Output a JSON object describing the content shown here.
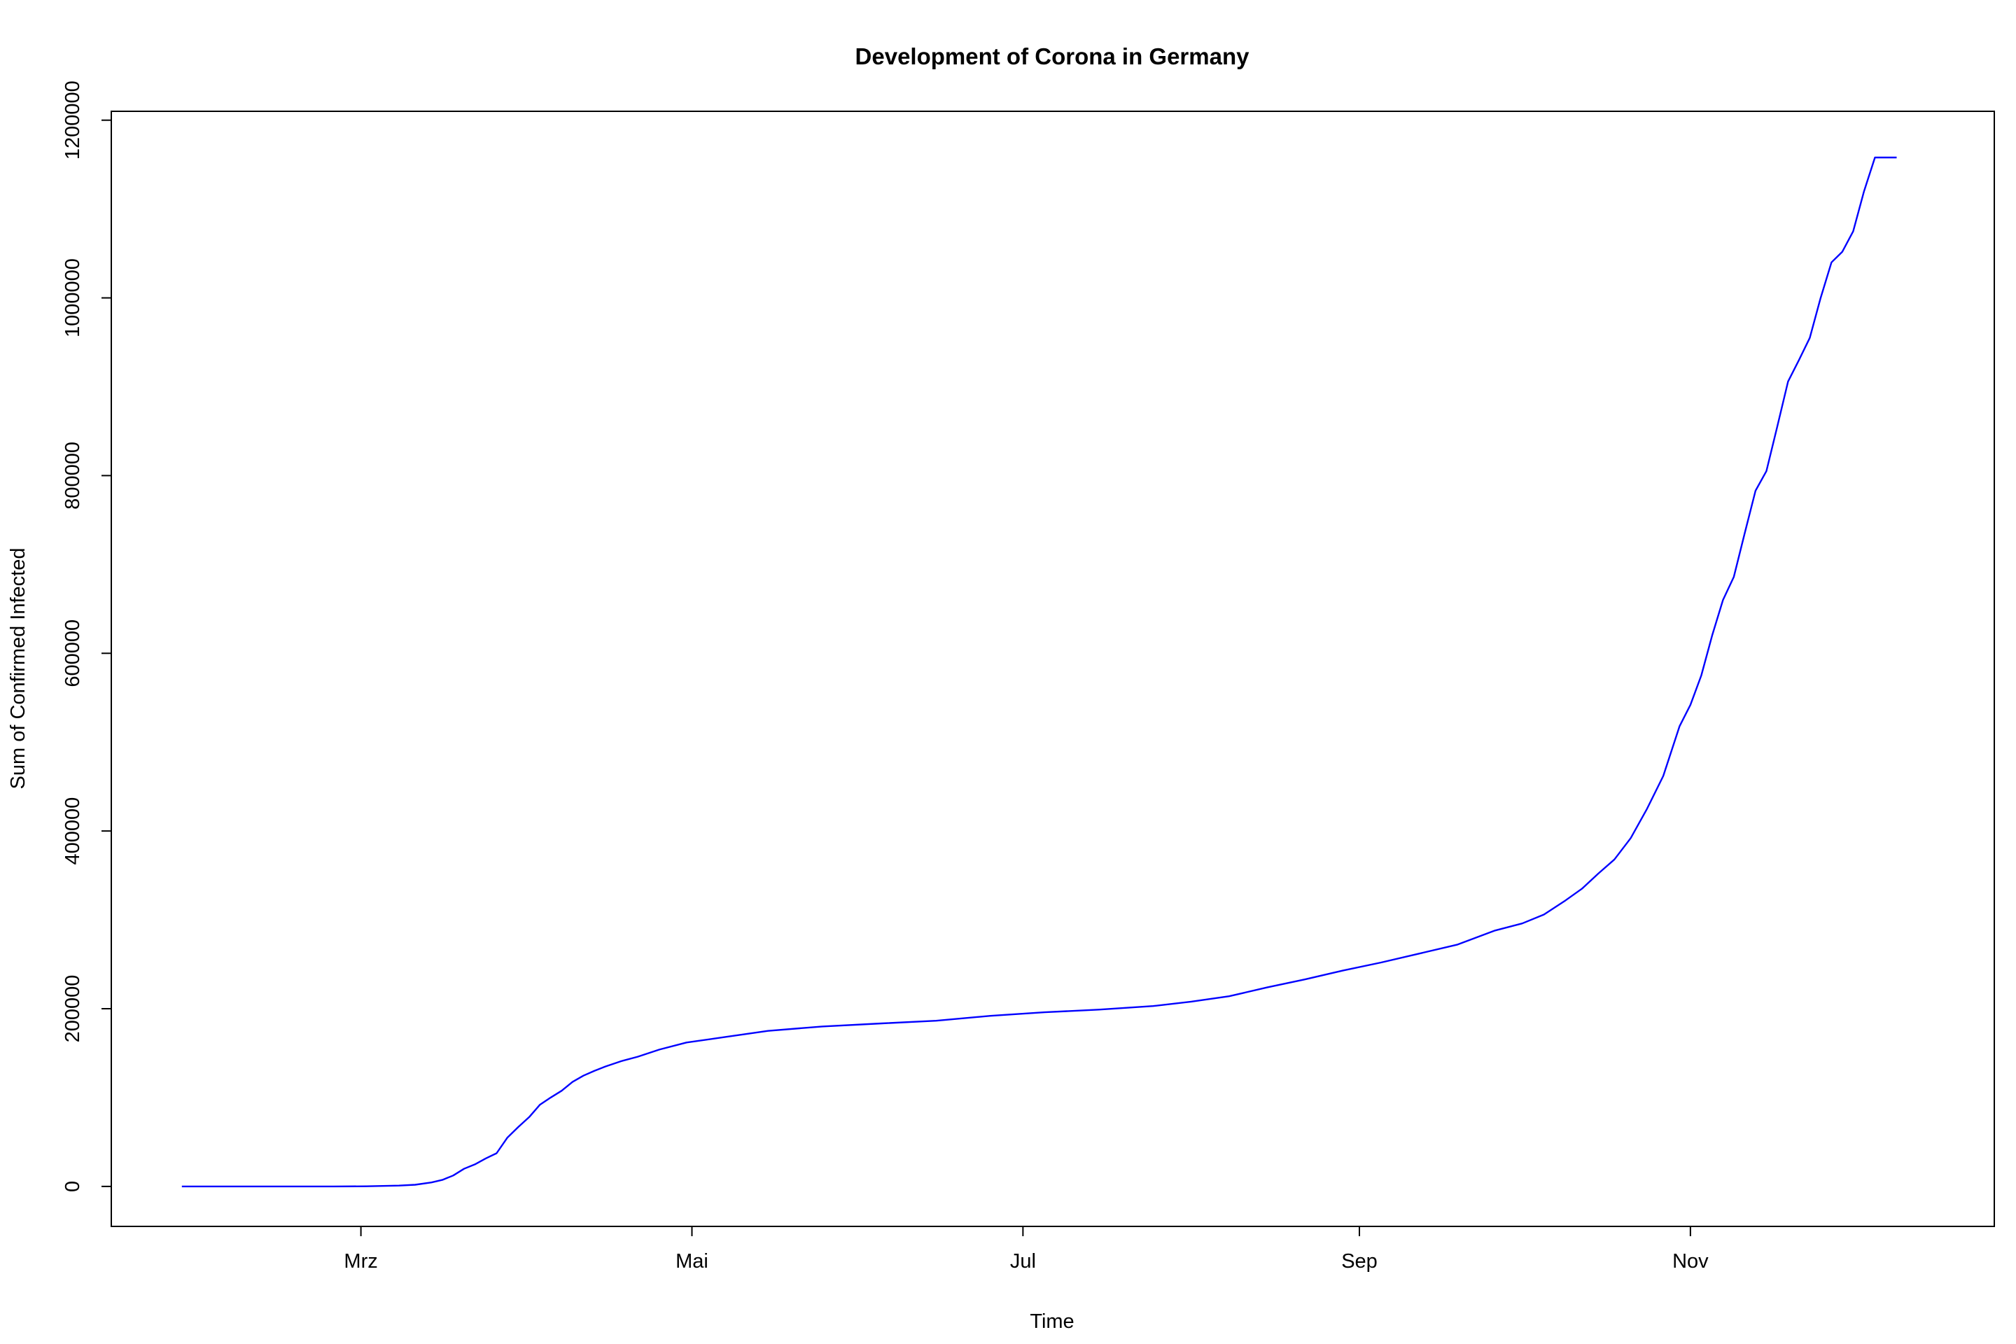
{
  "chart_data": {
    "type": "line",
    "title": "Development of Corona in Germany",
    "xlabel": "Time",
    "ylabel": "Sum of Confirmed Infected",
    "x_tick_labels": [
      {
        "date": "2020-03-01",
        "label": "Mrz"
      },
      {
        "date": "2020-05-01",
        "label": "Mai"
      },
      {
        "date": "2020-07-01",
        "label": "Jul"
      },
      {
        "date": "2020-09-01",
        "label": "Sep"
      },
      {
        "date": "2020-11-01",
        "label": "Nov"
      }
    ],
    "y_ticks": [
      0,
      200000,
      400000,
      600000,
      800000,
      1000000,
      1200000
    ],
    "y_tick_labels": [
      "0",
      "200000",
      "400000",
      "600000",
      "800000",
      "1000000",
      "1200000"
    ],
    "xlim": [
      "2020-01-15",
      "2020-12-27"
    ],
    "ylim": [
      -45000,
      1210000
    ],
    "grid": false,
    "line_color": "#0000ff",
    "series": [
      {
        "x": [
          "2020-01-28",
          "2020-02-10",
          "2020-02-25",
          "2020-03-02",
          "2020-03-08",
          "2020-03-11",
          "2020-03-14",
          "2020-03-16",
          "2020-03-18",
          "2020-03-20",
          "2020-03-22",
          "2020-03-24",
          "2020-03-26",
          "2020-03-28",
          "2020-03-30",
          "2020-04-01",
          "2020-04-03",
          "2020-04-05",
          "2020-04-07",
          "2020-04-09",
          "2020-04-11",
          "2020-04-13",
          "2020-04-15",
          "2020-04-18",
          "2020-04-21",
          "2020-04-25",
          "2020-04-30",
          "2020-05-07",
          "2020-05-15",
          "2020-05-25",
          "2020-06-05",
          "2020-06-15",
          "2020-06-25",
          "2020-07-05",
          "2020-07-15",
          "2020-07-25",
          "2020-08-01",
          "2020-08-08",
          "2020-08-15",
          "2020-08-22",
          "2020-08-29",
          "2020-09-05",
          "2020-09-12",
          "2020-09-19",
          "2020-09-26",
          "2020-10-01",
          "2020-10-05",
          "2020-10-09",
          "2020-10-12",
          "2020-10-15",
          "2020-10-18",
          "2020-10-21",
          "2020-10-24",
          "2020-10-27",
          "2020-10-30",
          "2020-11-01",
          "2020-11-03",
          "2020-11-05",
          "2020-11-07",
          "2020-11-09",
          "2020-11-11",
          "2020-11-13",
          "2020-11-15",
          "2020-11-17",
          "2020-11-19",
          "2020-11-21",
          "2020-11-23",
          "2020-11-25",
          "2020-11-27",
          "2020-11-29",
          "2020-12-01",
          "2020-12-03",
          "2020-12-05",
          "2020-12-07",
          "2020-12-09"
        ],
        "values": [
          0,
          0,
          0,
          150,
          900,
          1900,
          4500,
          7300,
          12300,
          19800,
          24800,
          31500,
          37300,
          55000,
          66900,
          78000,
          92000,
          100100,
          107700,
          117600,
          124600,
          130000,
          134800,
          141000,
          146000,
          154000,
          162000,
          168000,
          175000,
          180000,
          183500,
          186500,
          192000,
          196000,
          199000,
          203000,
          208000,
          214000,
          224000,
          233000,
          243000,
          252000,
          262000,
          272000,
          288000,
          296000,
          306000,
          322000,
          335000,
          352000,
          368000,
          392000,
          425000,
          462000,
          518000,
          542000,
          575000,
          620000,
          660000,
          686000,
          735000,
          783000,
          805000,
          855000,
          906000,
          930000,
          955000,
          1000000,
          1040000,
          1052000,
          1075000,
          1120000,
          1158000,
          1158000,
          1158000
        ]
      }
    ]
  }
}
